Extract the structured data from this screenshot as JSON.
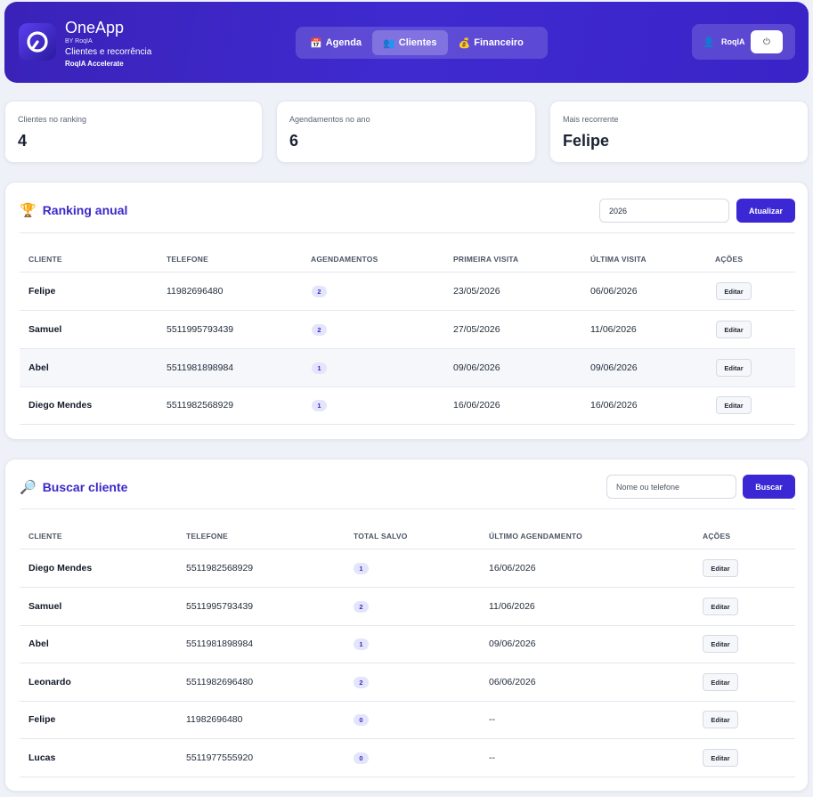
{
  "header": {
    "brand_name": "OneApp",
    "brand_by": "BY RoqIA",
    "brand_subtitle": "Clientes e recorrência",
    "brand_tagline": "RoqIA Accelerate",
    "nav": [
      {
        "label": "Agenda",
        "icon": "calendar-icon",
        "glyph": "📅"
      },
      {
        "label": "Clientes",
        "icon": "users-icon",
        "glyph": "👥",
        "active": true
      },
      {
        "label": "Financeiro",
        "icon": "money-bag-icon",
        "glyph": "💰"
      }
    ],
    "user": {
      "name": "RoqIA",
      "icon": "user-icon",
      "power_glyph": "⏻"
    }
  },
  "stats": [
    {
      "label": "Clientes no ranking",
      "value": "4"
    },
    {
      "label": "Agendamentos no ano",
      "value": "6"
    },
    {
      "label": "Mais recorrente",
      "value": "Felipe"
    }
  ],
  "ranking": {
    "title": "Ranking anual",
    "icon": "trophy-icon",
    "year_value": "2026",
    "refresh_label": "Atualizar",
    "columns": [
      "CLIENTE",
      "TELEFONE",
      "AGENDAMENTOS",
      "PRIMEIRA VISITA",
      "ÚLTIMA VISITA",
      "AÇÕES"
    ],
    "rows": [
      {
        "name": "Felipe",
        "phone": "11982696480",
        "count": "2",
        "first": "23/05/2026",
        "last": "06/06/2026",
        "action": "Editar"
      },
      {
        "name": "Samuel",
        "phone": "5511995793439",
        "count": "2",
        "first": "27/05/2026",
        "last": "11/06/2026",
        "action": "Editar"
      },
      {
        "name": "Abel",
        "phone": "5511981898984",
        "count": "1",
        "first": "09/06/2026",
        "last": "09/06/2026",
        "action": "Editar"
      },
      {
        "name": "Diego Mendes",
        "phone": "5511982568929",
        "count": "1",
        "first": "16/06/2026",
        "last": "16/06/2026",
        "action": "Editar"
      }
    ]
  },
  "search": {
    "title": "Buscar cliente",
    "icon": "magnifier-icon",
    "placeholder": "Nome ou telefone",
    "button_label": "Buscar",
    "columns": [
      "CLIENTE",
      "TELEFONE",
      "TOTAL SALVO",
      "ÚLTIMO AGENDAMENTO",
      "AÇÕES"
    ],
    "rows": [
      {
        "name": "Diego Mendes",
        "phone": "5511982568929",
        "total": "1",
        "last": "16/06/2026",
        "action": "Editar"
      },
      {
        "name": "Samuel",
        "phone": "5511995793439",
        "total": "2",
        "last": "11/06/2026",
        "action": "Editar"
      },
      {
        "name": "Abel",
        "phone": "5511981898984",
        "total": "1",
        "last": "09/06/2026",
        "action": "Editar"
      },
      {
        "name": "Leonardo",
        "phone": "5511982696480",
        "total": "2",
        "last": "06/06/2026",
        "action": "Editar"
      },
      {
        "name": "Felipe",
        "phone": "11982696480",
        "total": "0",
        "last": "--",
        "action": "Editar"
      },
      {
        "name": "Lucas",
        "phone": "5511977555920",
        "total": "0",
        "last": "--",
        "action": "Editar"
      }
    ]
  }
}
